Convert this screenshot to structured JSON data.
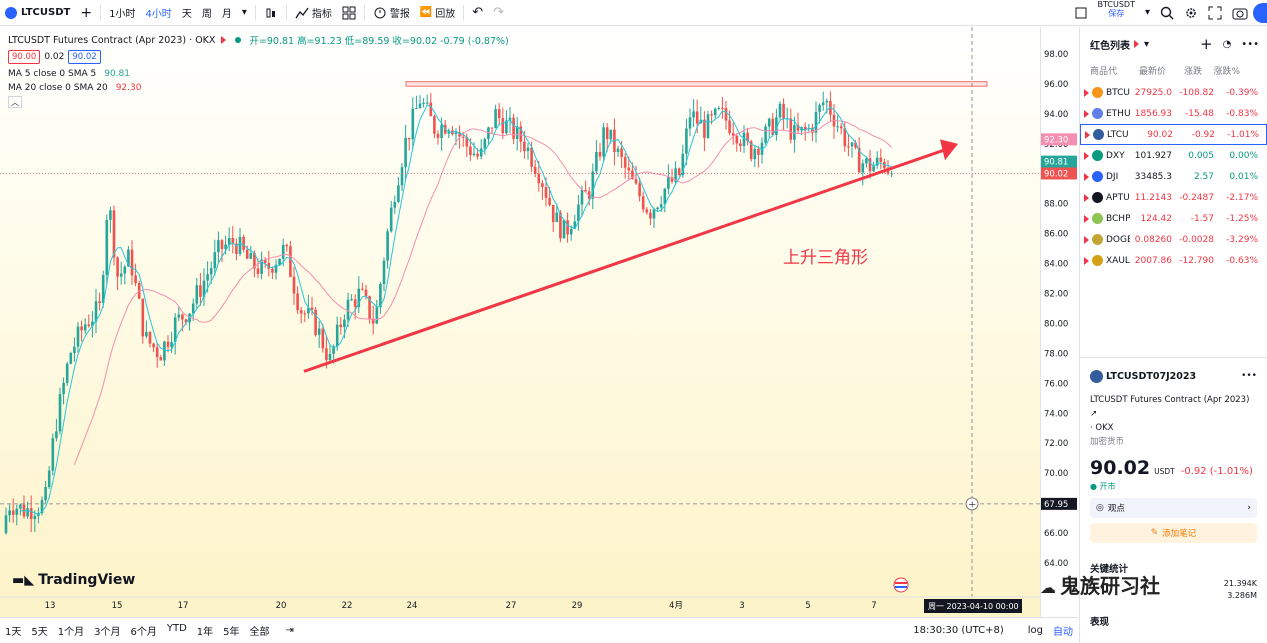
{
  "topbar": {
    "symbol": "LTCUSDT",
    "add_label": "+",
    "interval_1h": "1小时",
    "interval_4h": "4小时",
    "interval_day": "天",
    "interval_week": "周",
    "interval_month": "月",
    "indicators_label": "指标",
    "alert_label": "警报",
    "replay_label": "回放",
    "compare_symbol": "BTCUSDT",
    "save_label": "保存"
  },
  "legend": {
    "title": "LTCUSDT Futures Contract (Apr 2023) · OKX",
    "ohlc": "开=90.81 高=91.23 低=89.59 收=90.02 -0.79 (-0.87%)",
    "bid": "90.00",
    "spread": "0.02",
    "ask": "90.02",
    "ma5_label": "MA 5 close 0 SMA 5",
    "ma5_value": "90.81",
    "ma20_label": "MA 20 close 0 SMA 20",
    "ma20_value": "92.30"
  },
  "annotation": "上升三角形",
  "crosshair_price": "67.95",
  "crosshair_time": "周一 2023-04-10  00:00",
  "price_ticks": [
    "98.00",
    "96.00",
    "94.00",
    "92.00",
    "90.00",
    "88.00",
    "86.00",
    "84.00",
    "82.00",
    "80.00",
    "78.00",
    "76.00",
    "74.00",
    "72.00",
    "70.00",
    "68.00",
    "66.00",
    "64.00"
  ],
  "price_labels": {
    "ma20": "92.30",
    "ma5": "90.81",
    "last": "90.02"
  },
  "time_ticks": [
    "13",
    "15",
    "17",
    "20",
    "22",
    "24",
    "27",
    "29",
    "4月",
    "3",
    "5",
    "7"
  ],
  "brand": "TradingView",
  "bottombar": {
    "ranges": [
      "1天",
      "5天",
      "1个月",
      "3个月",
      "6个月",
      "YTD",
      "1年",
      "5年",
      "全部"
    ],
    "clock": "18:30:30 (UTC+8)",
    "log": "log",
    "auto": "自动"
  },
  "watchlist": {
    "title": "红色列表",
    "columns": [
      "商品代",
      "最新价",
      "涨跌",
      "涨跌%"
    ],
    "rows": [
      {
        "sym": "BTCU",
        "price": "27925.0",
        "chg": "-108.82",
        "pct": "-0.39%",
        "color": "#f7931a"
      },
      {
        "sym": "ETHU",
        "price": "1856.93",
        "chg": "-15.48",
        "pct": "-0.83%",
        "color": "#627eea"
      },
      {
        "sym": "LTCU",
        "price": "90.02",
        "chg": "-0.92",
        "pct": "-1.01%",
        "color": "#345d9d"
      },
      {
        "sym": "DXY",
        "price": "101.927",
        "chg": "0.005",
        "pct": "0.00%",
        "color": "#089981"
      },
      {
        "sym": "DJI",
        "price": "33485.3",
        "chg": "2.57",
        "pct": "0.01%",
        "color": "#2962ff"
      },
      {
        "sym": "APTU",
        "price": "11.2143",
        "chg": "-0.2487",
        "pct": "-2.17%",
        "color": "#131722"
      },
      {
        "sym": "BCHP",
        "price": "124.42",
        "chg": "-1.57",
        "pct": "-1.25%",
        "color": "#8dc351"
      },
      {
        "sym": "DOGE",
        "price": "0.08260",
        "chg": "-0.0028",
        "pct": "-3.29%",
        "color": "#c2a633"
      },
      {
        "sym": "XAUL",
        "price": "2007.86",
        "chg": "-12.790",
        "pct": "-0.63%",
        "color": "#d4a017"
      }
    ]
  },
  "details": {
    "symbol": "LTCUSDT07J2023",
    "name": "LTCUSDT Futures Contract (Apr 2023)",
    "exchange": "· OKX",
    "category": "加密货币",
    "price": "90.02",
    "currency": "USDT",
    "change": "-0.92 (-1.01%)",
    "status": "● 开市",
    "ideas": "观点",
    "add_note": "添加笔记",
    "key_stats": "关键统计",
    "stat1": "21.394K",
    "stat2": "3.286M",
    "perf": "表现"
  },
  "watermark": "鬼族研习社"
}
